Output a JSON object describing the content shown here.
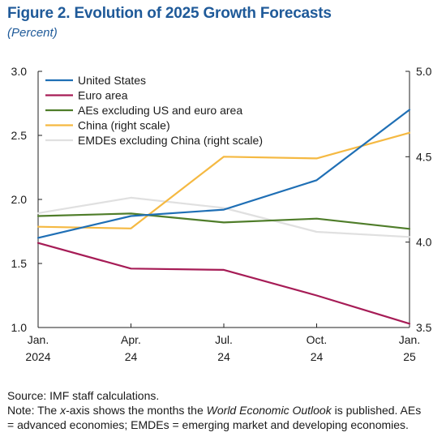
{
  "figure": {
    "title": "Figure 2.  Evolution of 2025 Growth Forecasts",
    "subtitle": "(Percent)"
  },
  "notes": {
    "source": "Source: IMF staff calculations.",
    "note_line1": "Note: The x-axis shows the months the World Economic Outlook is published. AEs",
    "note_line2": "= advanced economies; EMDEs = emerging market and developing economies."
  },
  "chart_data": {
    "type": "line",
    "title": "Figure 2.  Evolution of 2025 Growth Forecasts",
    "subtitle": "(Percent)",
    "x": [
      "Jan. 2024",
      "Apr. 24",
      "Jul. 24",
      "Oct. 24",
      "Jan. 25"
    ],
    "x_tick_labels": [
      [
        "Jan.",
        "2024"
      ],
      [
        "Apr.",
        "24"
      ],
      [
        "Jul.",
        "24"
      ],
      [
        "Oct.",
        "24"
      ],
      [
        "Jan.",
        "25"
      ]
    ],
    "y_left": {
      "range": [
        1.0,
        3.0
      ],
      "ticks": [
        "1.0",
        "1.5",
        "2.0",
        "2.5",
        "3.0"
      ]
    },
    "y_right": {
      "range": [
        3.5,
        5.0
      ],
      "ticks": [
        "3.5",
        "4.0",
        "4.5",
        "5.0"
      ]
    },
    "grid": false,
    "legend_position": "top-left",
    "series": [
      {
        "name": "United States",
        "axis": "left",
        "color": "#1f6fb5",
        "values": [
          1.7,
          1.87,
          1.92,
          2.15,
          2.7
        ]
      },
      {
        "name": "Euro area",
        "axis": "left",
        "color": "#a61c56",
        "values": [
          1.66,
          1.46,
          1.45,
          1.25,
          1.03
        ]
      },
      {
        "name": "AEs excluding US and euro area",
        "axis": "left",
        "color": "#4f7d2a",
        "values": [
          1.87,
          1.89,
          1.82,
          1.85,
          1.77
        ]
      },
      {
        "name": "China (right scale)",
        "axis": "right",
        "color": "#f5b942",
        "values": [
          4.09,
          4.08,
          4.5,
          4.49,
          4.64
        ]
      },
      {
        "name": "EMDEs excluding China (right scale)",
        "axis": "right",
        "color": "#e0e0e0",
        "values": [
          4.17,
          4.26,
          4.2,
          4.06,
          4.03
        ]
      }
    ]
  }
}
